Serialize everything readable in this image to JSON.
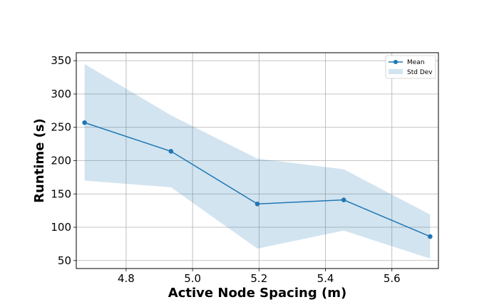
{
  "chart_data": {
    "type": "line",
    "title": "",
    "xlabel": "Active Node Spacing (m)",
    "ylabel": "Runtime (s)",
    "xlim": [
      4.65,
      5.74
    ],
    "ylim": [
      38,
      362
    ],
    "grid": true,
    "legend_position": "top-right",
    "x_ticks": [
      4.8,
      5.0,
      5.2,
      5.4,
      5.6
    ],
    "x_tick_labels": [
      "4.8",
      "5.0",
      "5.2",
      "5.4",
      "5.6"
    ],
    "y_ticks": [
      50,
      100,
      150,
      200,
      250,
      300,
      350
    ],
    "y_tick_labels": [
      "50",
      "100",
      "150",
      "200",
      "250",
      "300",
      "350"
    ],
    "x": [
      4.675,
      4.935,
      5.195,
      5.455,
      5.715
    ],
    "series": [
      {
        "name": "Mean",
        "type": "line",
        "color": "#1f77b4",
        "values": [
          257,
          214,
          135,
          141,
          86
        ]
      },
      {
        "name": "Std Dev",
        "type": "band",
        "color": "#1f77b4",
        "opacity": 0.2,
        "upper": [
          345,
          268,
          203,
          187,
          119
        ],
        "lower": [
          170,
          160,
          68,
          95,
          53
        ]
      }
    ]
  }
}
